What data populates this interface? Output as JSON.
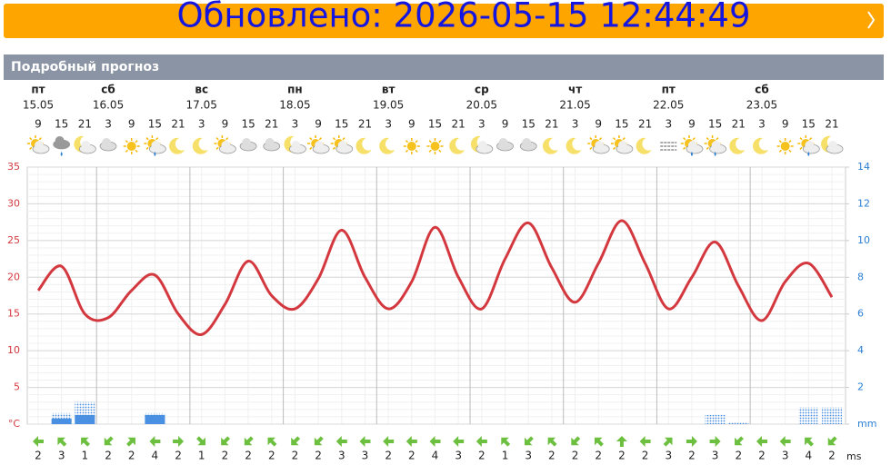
{
  "banner": {
    "updated": "Обновлено: 2026-05-15 12:44:49"
  },
  "section_title": "Подробный прогноз",
  "days": [
    {
      "name": "пт",
      "date": "15.05"
    },
    {
      "name": "сб",
      "date": "16.05"
    },
    {
      "name": "вс",
      "date": "17.05"
    },
    {
      "name": "пн",
      "date": "18.05"
    },
    {
      "name": "вт",
      "date": "19.05"
    },
    {
      "name": "ср",
      "date": "20.05"
    },
    {
      "name": "чт",
      "date": "21.05"
    },
    {
      "name": "пт",
      "date": "22.05"
    },
    {
      "name": "сб",
      "date": "23.05"
    }
  ],
  "chart_data": {
    "type": "line",
    "categories": [
      9,
      15,
      21,
      3,
      9,
      15,
      21,
      3,
      9,
      15,
      21,
      3,
      9,
      15,
      21,
      3,
      9,
      15,
      21,
      3,
      9,
      15,
      21,
      3,
      9,
      15,
      21,
      3,
      9,
      15,
      21,
      3,
      9,
      15,
      21
    ],
    "ylim": [
      0,
      35
    ],
    "yticks": [
      {
        "value": 0,
        "label": "°C"
      },
      5,
      10,
      15,
      20,
      25,
      30,
      35
    ],
    "y2lim": [
      0,
      14
    ],
    "y2ticks": [
      {
        "value": 0,
        "label": "mm"
      },
      2,
      4,
      6,
      8,
      10,
      12,
      14
    ],
    "grid": true,
    "series": [
      {
        "color": "#d4383f",
        "values": [
          18.2,
          21.5,
          15,
          14.5,
          18.2,
          20.3,
          15,
          12.2,
          16.3,
          22.2,
          17.5,
          15.7,
          19.8,
          26.4,
          20,
          15.7,
          19.4,
          26.8,
          20,
          15.7,
          22.5,
          27.4,
          21.3,
          16.6,
          21.9,
          27.7,
          21.9,
          15.7,
          20,
          24.8,
          18.8,
          14.1,
          19.4,
          21.9,
          17.3
        ]
      },
      {
        "type": "bar",
        "axis": "y2",
        "color": "#4a90e2",
        "pattern": "dotted",
        "values": [
          0,
          0.6,
          1.2,
          0,
          0,
          0.6,
          0,
          0,
          0,
          0,
          0,
          0,
          0,
          0,
          0,
          0,
          0,
          0,
          0,
          0,
          0,
          0,
          0,
          0,
          0,
          0,
          0,
          0,
          0,
          0.5,
          0.1,
          0,
          0,
          0.9,
          0.9
        ]
      },
      {
        "type": "bar",
        "axis": "y2",
        "color": "#4a90e2",
        "values": [
          0,
          0.3,
          0.5,
          0,
          0,
          0.5,
          0,
          0,
          0,
          0,
          0,
          0,
          0,
          0,
          0,
          0,
          0,
          0,
          0,
          0,
          0,
          0,
          0,
          0,
          0,
          0,
          0,
          0,
          0,
          0,
          0,
          0,
          0,
          0,
          0
        ]
      }
    ]
  },
  "wind": {
    "unit": "ms",
    "speed": [
      2,
      3,
      1,
      2,
      2,
      4,
      2,
      1,
      2,
      2,
      2,
      2,
      2,
      3,
      3,
      2,
      2,
      4,
      3,
      2,
      1,
      3,
      2,
      2,
      2,
      2,
      2,
      3,
      2,
      3,
      2,
      2,
      3,
      4,
      2
    ],
    "direction": [
      270,
      315,
      315,
      225,
      45,
      270,
      90,
      135,
      225,
      225,
      315,
      225,
      225,
      270,
      270,
      270,
      270,
      270,
      270,
      270,
      315,
      225,
      315,
      225,
      315,
      0,
      270,
      45,
      90,
      90,
      225,
      270,
      270,
      315,
      225
    ]
  }
}
